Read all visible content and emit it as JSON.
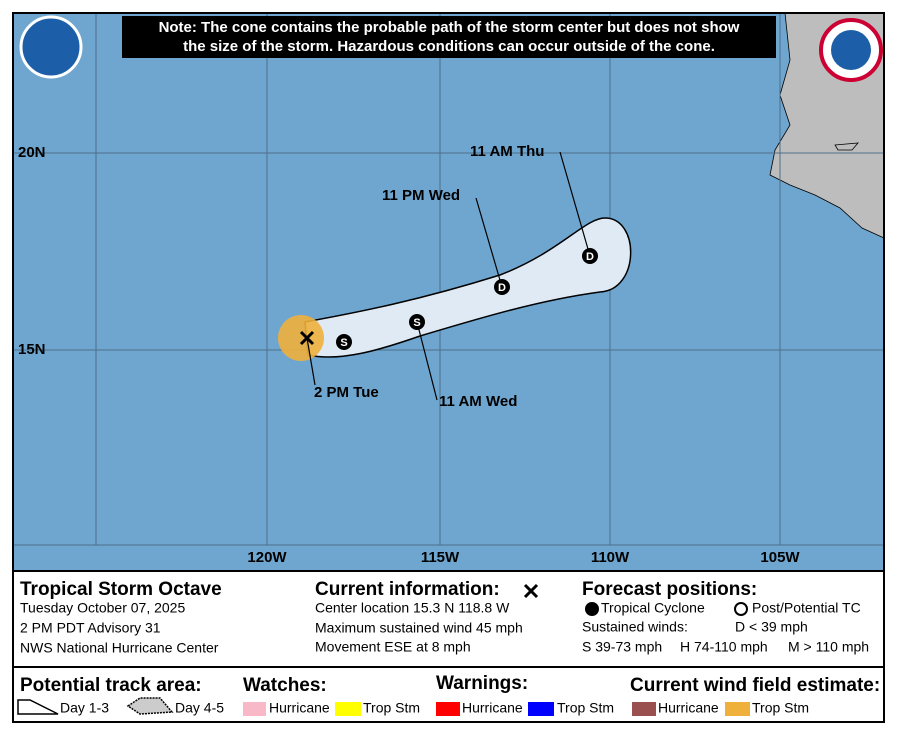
{
  "note": [
    "Note: The cone contains the probable path of the storm center but does not show",
    "the size of the storm. Hazardous conditions can occur outside of the cone."
  ],
  "map": {
    "lat_labels": [
      "20N",
      "15N"
    ],
    "lon_labels": [
      "120W",
      "115W",
      "110W",
      "105W"
    ],
    "markers": [
      "S",
      "S",
      "D",
      "D"
    ],
    "time_labels": [
      "2 PM Tue",
      "11 AM Wed",
      "11 PM Wed",
      "11 AM Thu"
    ]
  },
  "storm": {
    "name": "Tropical Storm Octave",
    "date": "Tuesday October 07, 2025",
    "advisory": "2 PM PDT Advisory 31",
    "center": "NWS National Hurricane Center"
  },
  "current": {
    "title": "Current information:",
    "lines": [
      "Center location 15.3 N 118.8 W",
      "Maximum sustained wind 45 mph",
      "Movement ESE at 8 mph"
    ]
  },
  "forecast": {
    "title": "Forecast positions:",
    "tropical": "Tropical Cyclone",
    "post": "Post/Potential TC",
    "winds": "Sustained winds:",
    "d": "D < 39 mph",
    "s": "S 39-73 mph",
    "h": "H 74-110 mph",
    "m": "M > 110 mph"
  },
  "legend": {
    "track": "Potential track area:",
    "day13": "Day 1-3",
    "day45": "Day 4-5",
    "watches": "Watches:",
    "warnings": "Warnings:",
    "wind": "Current wind field estimate:",
    "hurricane": "Hurricane",
    "tropstm": "Trop Stm"
  }
}
